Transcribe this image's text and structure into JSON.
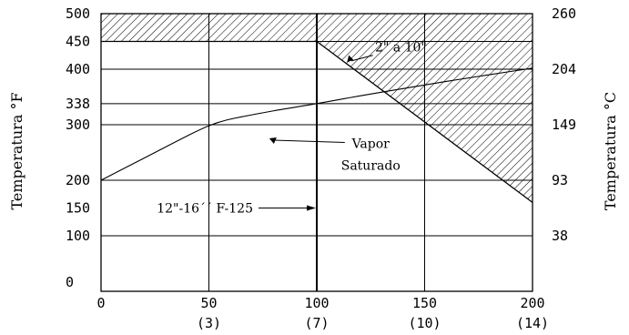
{
  "chart_data": {
    "type": "line",
    "title": "",
    "ylabel_left": "Temperatura °F",
    "ylabel_right": "Temperatura °C",
    "xlim": [
      0,
      200
    ],
    "ylim": [
      0,
      500
    ],
    "grid": true,
    "x_ticks": [
      {
        "value": 0,
        "label": "0",
        "sublabel": ""
      },
      {
        "value": 50,
        "label": "50",
        "sublabel": "(3)"
      },
      {
        "value": 100,
        "label": "100",
        "sublabel": "(7)"
      },
      {
        "value": 150,
        "label": "150",
        "sublabel": "(10)"
      },
      {
        "value": 200,
        "label": "200",
        "sublabel": "(14)"
      }
    ],
    "y_ticks_left": [
      {
        "value": 0,
        "label": "0"
      },
      {
        "value": 100,
        "label": "100"
      },
      {
        "value": 150,
        "label": "150"
      },
      {
        "value": 200,
        "label": "200"
      },
      {
        "value": 300,
        "label": "300"
      },
      {
        "value": 338,
        "label": "338"
      },
      {
        "value": 400,
        "label": "400"
      },
      {
        "value": 450,
        "label": "450"
      },
      {
        "value": 500,
        "label": "500"
      }
    ],
    "y_ticks_right": [
      {
        "value": 100,
        "label": "38"
      },
      {
        "value": 200,
        "label": "93"
      },
      {
        "value": 300,
        "label": "149"
      },
      {
        "value": 400,
        "label": "204"
      },
      {
        "value": 500,
        "label": "260"
      }
    ],
    "gridlines_y": [
      100,
      200,
      300,
      338,
      400,
      450
    ],
    "gridlines_x": [
      50,
      100,
      150
    ],
    "series": [
      {
        "name": "Vapor Saturado",
        "x": [
          0,
          20,
          40,
          50,
          60,
          80,
          100,
          120,
          140,
          160,
          180,
          200
        ],
        "y": [
          200,
          240,
          280,
          298,
          310,
          325,
          338,
          352,
          365,
          378,
          390,
          402
        ]
      }
    ],
    "limit_line": {
      "x": [
        0,
        100,
        200
      ],
      "y": [
        450,
        450,
        160
      ]
    },
    "vertical_limit": {
      "x": 100,
      "label": "12\"-16´´ F-125"
    },
    "annotations": [
      {
        "text": "Vapor",
        "x": 125,
        "y": 258
      },
      {
        "text": "Saturado",
        "x": 125,
        "y": 219
      },
      {
        "text": "2\" a 10\"",
        "x": 127,
        "y": 432
      }
    ]
  }
}
